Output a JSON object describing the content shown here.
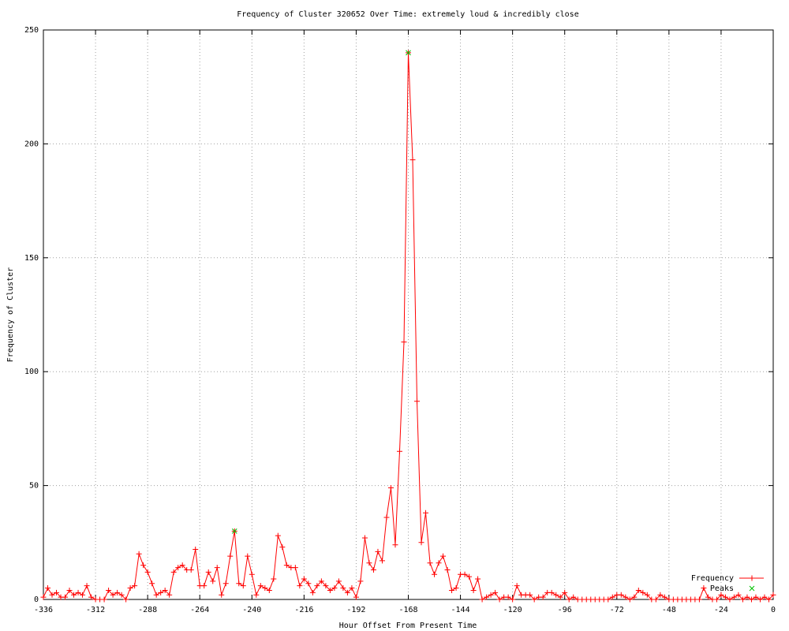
{
  "chart_data": {
    "type": "line",
    "title": "Frequency of Cluster 320652 Over Time: extremely loud & incredibly close",
    "x_label": "Hour Offset From Present Time",
    "y_label": "Frequency of Cluster",
    "xlim": [
      -336,
      0
    ],
    "ylim": [
      0,
      250
    ],
    "xticks": [
      -336,
      -312,
      -288,
      -264,
      -240,
      -216,
      -192,
      -168,
      -144,
      -120,
      -96,
      -72,
      -48,
      -24,
      0
    ],
    "yticks": [
      0,
      50,
      100,
      150,
      200,
      250
    ],
    "grid": true,
    "legend": "lower right",
    "series": [
      {
        "name": "Frequency",
        "color": "#ff0000",
        "marker": "plus",
        "x": [
          -336,
          -334,
          -332,
          -330,
          -328,
          -326,
          -324,
          -322,
          -320,
          -318,
          -316,
          -314,
          -312,
          -310,
          -308,
          -306,
          -304,
          -302,
          -300,
          -298,
          -296,
          -294,
          -292,
          -290,
          -288,
          -286,
          -284,
          -282,
          -280,
          -278,
          -276,
          -274,
          -272,
          -270,
          -268,
          -266,
          -264,
          -262,
          -260,
          -258,
          -256,
          -254,
          -252,
          -250,
          -248,
          -246,
          -244,
          -242,
          -240,
          -238,
          -236,
          -234,
          -232,
          -230,
          -228,
          -226,
          -224,
          -222,
          -220,
          -218,
          -216,
          -214,
          -212,
          -210,
          -208,
          -206,
          -204,
          -202,
          -200,
          -198,
          -196,
          -194,
          -192,
          -190,
          -188,
          -186,
          -184,
          -182,
          -180,
          -178,
          -176,
          -174,
          -172,
          -170,
          -168,
          -166,
          -164,
          -162,
          -160,
          -158,
          -156,
          -154,
          -152,
          -150,
          -148,
          -146,
          -144,
          -142,
          -140,
          -138,
          -136,
          -134,
          -132,
          -130,
          -128,
          -126,
          -124,
          -122,
          -120,
          -118,
          -116,
          -114,
          -112,
          -110,
          -108,
          -106,
          -104,
          -102,
          -100,
          -98,
          -96,
          -94,
          -92,
          -90,
          -88,
          -86,
          -84,
          -82,
          -80,
          -78,
          -76,
          -74,
          -72,
          -70,
          -68,
          -66,
          -64,
          -62,
          -60,
          -58,
          -56,
          -54,
          -52,
          -50,
          -48,
          -46,
          -44,
          -42,
          -40,
          -38,
          -36,
          -34,
          -32,
          -30,
          -28,
          -26,
          -24,
          -22,
          -20,
          -18,
          -16,
          -14,
          -12,
          -10,
          -8,
          -6,
          -4,
          -2,
          0
        ],
        "values": [
          1,
          5,
          2,
          3,
          1,
          1,
          4,
          2,
          3,
          2,
          6,
          1,
          0,
          0,
          0,
          4,
          2,
          3,
          2,
          0,
          5,
          6,
          20,
          15,
          12,
          7,
          2,
          3,
          4,
          2,
          12,
          14,
          15,
          13,
          13,
          22,
          6,
          6,
          12,
          8,
          14,
          2,
          7,
          19,
          30,
          7,
          6,
          19,
          11,
          2,
          6,
          5,
          4,
          9,
          28,
          23,
          15,
          14,
          14,
          6,
          9,
          7,
          3,
          6,
          8,
          6,
          4,
          5,
          8,
          5,
          3,
          5,
          1,
          8,
          27,
          16,
          13,
          21,
          17,
          36,
          49,
          24,
          65,
          113,
          240,
          193,
          87,
          25,
          38,
          16,
          11,
          16,
          19,
          13,
          4,
          5,
          11,
          11,
          10,
          4,
          9,
          0,
          1,
          2,
          3,
          0,
          1,
          1,
          0,
          6,
          2,
          2,
          2,
          0,
          1,
          1,
          3,
          3,
          2,
          1,
          3,
          0,
          1,
          0,
          0,
          0,
          0,
          0,
          0,
          0,
          0,
          1,
          2,
          2,
          1,
          0,
          1,
          4,
          3,
          2,
          0,
          0,
          2,
          1,
          0,
          0,
          0,
          0,
          0,
          0,
          0,
          0,
          5,
          1,
          0,
          0,
          2,
          1,
          0,
          1,
          2,
          0,
          1,
          0,
          1,
          0,
          1,
          0,
          2
        ]
      },
      {
        "name": "Peaks",
        "color": "#00c000",
        "marker": "cross",
        "x": [
          -248,
          -168
        ],
        "values": [
          30,
          240
        ]
      }
    ]
  }
}
